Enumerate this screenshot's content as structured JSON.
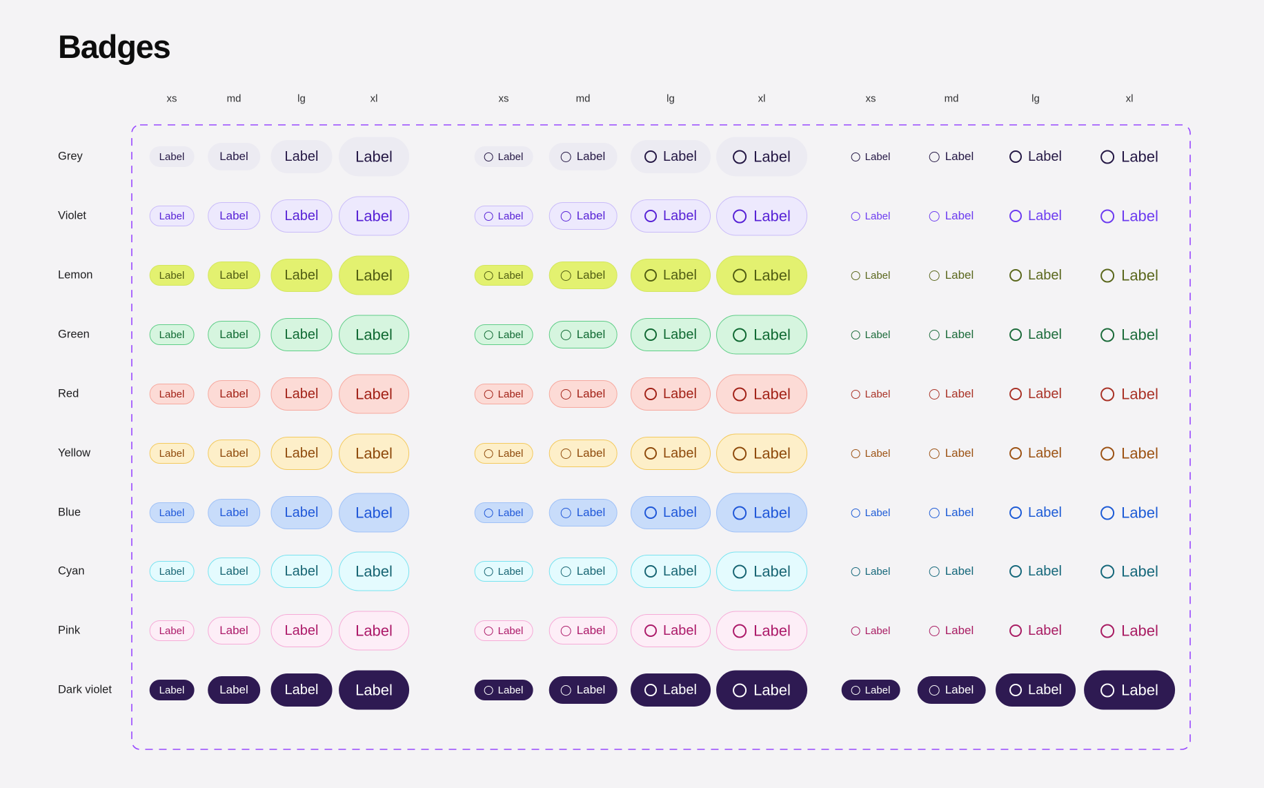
{
  "page": {
    "title": "Badges",
    "background": "#F4F3F5"
  },
  "section": {
    "border_color": "#9747FF"
  },
  "badge_label": "Label",
  "sizes": [
    "xs",
    "md",
    "lg",
    "xl"
  ],
  "groups": [
    {
      "id": "filled",
      "variant": "filled",
      "icon": false
    },
    {
      "id": "filled-icon",
      "variant": "filled",
      "icon": true
    },
    {
      "id": "text-icon",
      "variant": "text",
      "icon": true
    }
  ],
  "rows": [
    {
      "name": "Grey",
      "bg": "#ECEBF2",
      "border": "#ECEBF2",
      "text": "#241744",
      "plain": "#241744",
      "solid": false
    },
    {
      "name": "Violet",
      "bg": "#EDE9FD",
      "border": "#C9BBF9",
      "text": "#5722D6",
      "plain": "#6C3BF0",
      "solid": false
    },
    {
      "name": "Lemon",
      "bg": "#E3F170",
      "border": "#D3E65C",
      "text": "#515D13",
      "plain": "#5A671C",
      "solid": false
    },
    {
      "name": "Green",
      "bg": "#D6F5DF",
      "border": "#5ECD86",
      "text": "#106932",
      "plain": "#1C6B3A",
      "solid": false
    },
    {
      "name": "Red",
      "bg": "#FCDBD6",
      "border": "#F6A89E",
      "text": "#A22217",
      "plain": "#A93226",
      "solid": false
    },
    {
      "name": "Yellow",
      "bg": "#FDEFC9",
      "border": "#F3C95C",
      "text": "#8E4A0C",
      "plain": "#9C5213",
      "solid": false
    },
    {
      "name": "Blue",
      "bg": "#C8DCFA",
      "border": "#9FC1F7",
      "text": "#1F57D8",
      "plain": "#1D5BD6",
      "solid": false
    },
    {
      "name": "Cyan",
      "bg": "#E4FBFE",
      "border": "#77E3F0",
      "text": "#186573",
      "plain": "#15677A",
      "solid": false
    },
    {
      "name": "Pink",
      "bg": "#FDEEF7",
      "border": "#F6AAD7",
      "text": "#AC1A69",
      "plain": "#A81B62",
      "solid": false
    },
    {
      "name": "Dark violet",
      "bg": "#2E1A52",
      "border": "#2E1A52",
      "text": "#FFFFFF",
      "plain": "#FFFFFF",
      "solid": true
    }
  ]
}
